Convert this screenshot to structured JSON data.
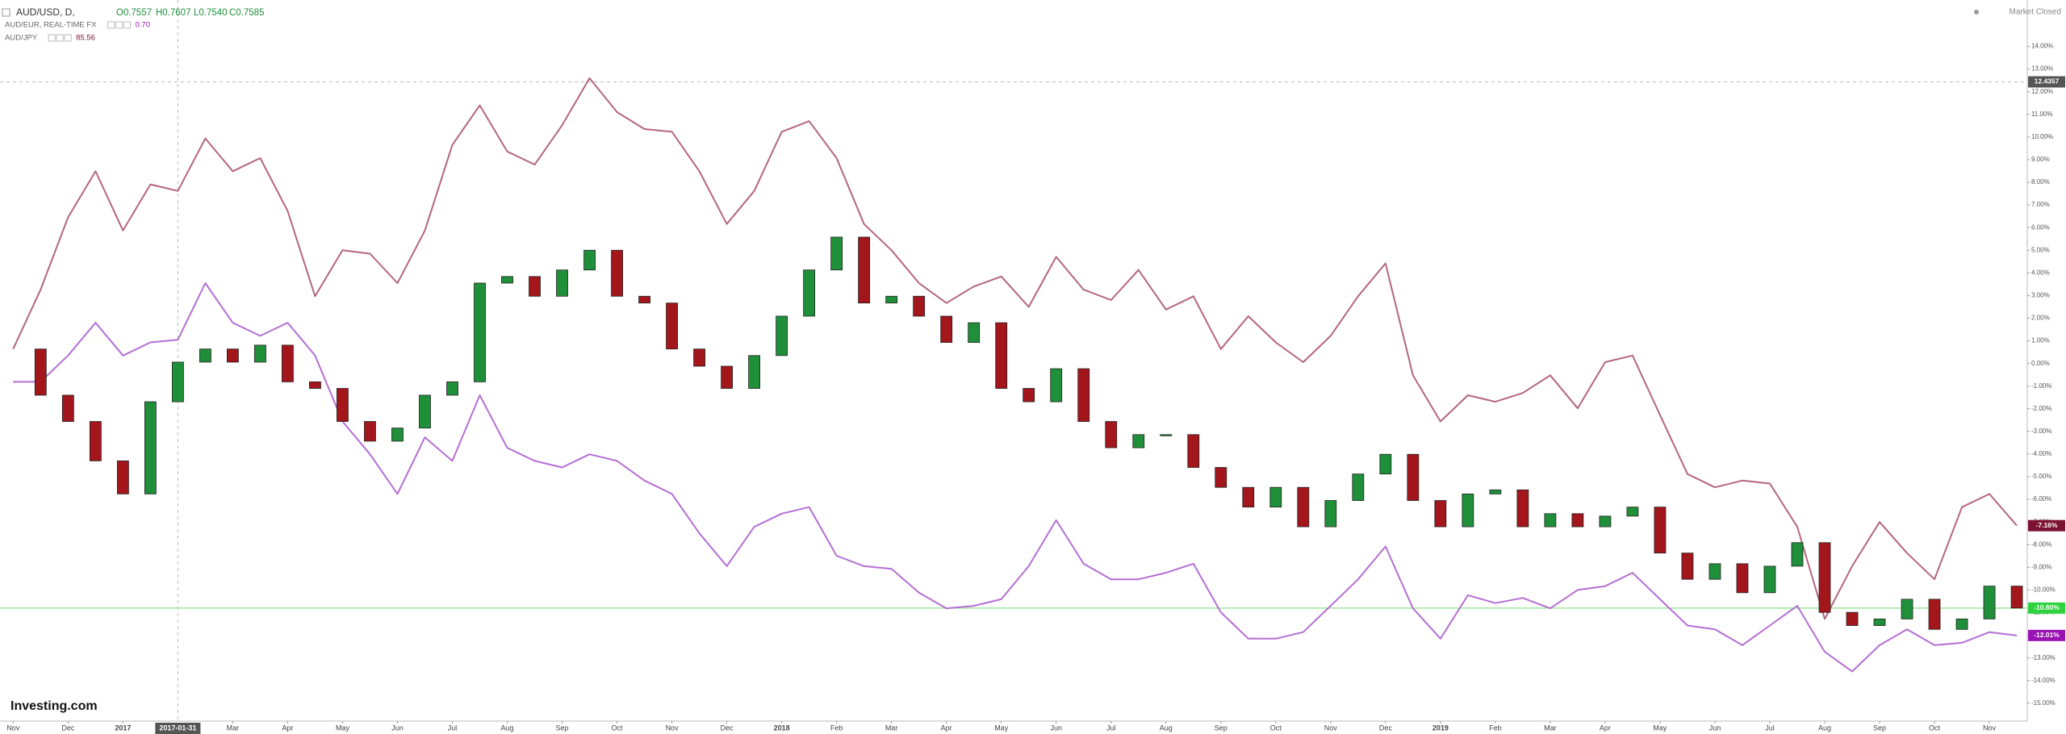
{
  "chart_data": {
    "type": "line",
    "status": "Market Closed",
    "logo": "Investing.com",
    "x": [
      0,
      0.5,
      1,
      1.5,
      2,
      2.5,
      3,
      3.5,
      4,
      4.5,
      5,
      5.5,
      6,
      6.5,
      7,
      7.5,
      8,
      8.5,
      9,
      9.5,
      10,
      10.5,
      11,
      11.5,
      12,
      12.5,
      13,
      13.5,
      14,
      14.5,
      15,
      15.5,
      16,
      16.5,
      17,
      17.5,
      18,
      18.5,
      19,
      19.5,
      20,
      20.5,
      21,
      21.5,
      22,
      22.5,
      23,
      23.5,
      24,
      24.5,
      25,
      25.5,
      26,
      26.5,
      27,
      27.5,
      28,
      28.5,
      29,
      29.5,
      30,
      30.5,
      31,
      31.5,
      32,
      32.5,
      33,
      33.5,
      34,
      34.5,
      35,
      35.5,
      36,
      36.5
    ],
    "xlim": [
      -0.24,
      36.69
    ],
    "xticks": [
      {
        "value": 0,
        "label": "Nov"
      },
      {
        "value": 1,
        "label": "Dec"
      },
      {
        "value": 2,
        "label": "2017"
      },
      {
        "value": 4,
        "label": "Mar"
      },
      {
        "value": 5,
        "label": "Apr"
      },
      {
        "value": 6,
        "label": "May"
      },
      {
        "value": 7,
        "label": "Jun"
      },
      {
        "value": 8,
        "label": "Jul"
      },
      {
        "value": 9,
        "label": "Aug"
      },
      {
        "value": 10,
        "label": "Sep"
      },
      {
        "value": 11,
        "label": "Oct"
      },
      {
        "value": 12,
        "label": "Nov"
      },
      {
        "value": 13,
        "label": "Dec"
      },
      {
        "value": 14,
        "label": "2018"
      },
      {
        "value": 15,
        "label": "Feb"
      },
      {
        "value": 16,
        "label": "Mar"
      },
      {
        "value": 17,
        "label": "Apr"
      },
      {
        "value": 18,
        "label": "May"
      },
      {
        "value": 19,
        "label": "Jun"
      },
      {
        "value": 20,
        "label": "Jul"
      },
      {
        "value": 21,
        "label": "Aug"
      },
      {
        "value": 22,
        "label": "Sep"
      },
      {
        "value": 23,
        "label": "Oct"
      },
      {
        "value": 24,
        "label": "Nov"
      },
      {
        "value": 25,
        "label": "Dec"
      },
      {
        "value": 26,
        "label": "2019"
      },
      {
        "value": 27,
        "label": "Feb"
      },
      {
        "value": 28,
        "label": "Mar"
      },
      {
        "value": 29,
        "label": "Apr"
      },
      {
        "value": 30,
        "label": "May"
      },
      {
        "value": 31,
        "label": "Jun"
      },
      {
        "value": 32,
        "label": "Jul"
      },
      {
        "value": 33,
        "label": "Aug"
      },
      {
        "value": 34,
        "label": "Sep"
      },
      {
        "value": 35,
        "label": "Oct"
      },
      {
        "value": 36,
        "label": "Nov"
      }
    ],
    "ylim": [
      -15.79,
      16.05
    ],
    "yticks": [
      {
        "value": 14,
        "label": "14.00%"
      },
      {
        "value": 13,
        "label": "13.00%"
      },
      {
        "value": 12,
        "label": "12.00%"
      },
      {
        "value": 11,
        "label": "11.00%"
      },
      {
        "value": 10,
        "label": "10.00%"
      },
      {
        "value": 9,
        "label": "9.00%"
      },
      {
        "value": 8,
        "label": "8.00%"
      },
      {
        "value": 7,
        "label": "7.00%"
      },
      {
        "value": 6,
        "label": "6.00%"
      },
      {
        "value": 5,
        "label": "5.00%"
      },
      {
        "value": 4,
        "label": "4.00%"
      },
      {
        "value": 3,
        "label": "3.00%"
      },
      {
        "value": 2,
        "label": "2.00%"
      },
      {
        "value": 1,
        "label": "1.00%"
      },
      {
        "value": 0,
        "label": "0.00%"
      },
      {
        "value": -1,
        "label": "-1.00%"
      },
      {
        "value": -2,
        "label": "-2.00%"
      },
      {
        "value": -3,
        "label": "-3.00%"
      },
      {
        "value": -4,
        "label": "-4.00%"
      },
      {
        "value": -5,
        "label": "-5.00%"
      },
      {
        "value": -6,
        "label": "-6.00%"
      },
      {
        "value": -7,
        "label": "-7.00%"
      },
      {
        "value": -8,
        "label": "-8.00%"
      },
      {
        "value": -9,
        "label": "-9.00%"
      },
      {
        "value": -10,
        "label": "-10.00%"
      },
      {
        "value": -11,
        "label": "-11.00%"
      },
      {
        "value": -12,
        "label": "-12.00%"
      },
      {
        "value": -13,
        "label": "-13.00%"
      },
      {
        "value": -14,
        "label": "-14.00%"
      },
      {
        "value": -15,
        "label": "-15.00%"
      }
    ],
    "crosshair": {
      "x": {
        "value": 3,
        "label": "2017-01-31"
      },
      "y": 12.4357
    },
    "series": [
      {
        "name": "AUD/USD, D,",
        "type": "candlestick",
        "up_color": "#1f8f3a",
        "down_color": "#a3161c",
        "label_color": "#2ed23f",
        "price_line": true,
        "price_line_color": "#9be89b",
        "quotes": [
          "O0.7557",
          "H0.7607",
          "L0.7540",
          "C0.7585"
        ],
        "last_label": "-10.80%",
        "values": [
          0.64,
          -1.4,
          -2.56,
          -4.3,
          -5.76,
          -1.69,
          0.06,
          0.64,
          0.06,
          0.81,
          -0.81,
          -1.1,
          -2.56,
          -3.43,
          -2.85,
          -1.4,
          -0.81,
          3.55,
          3.84,
          2.97,
          4.13,
          5.0,
          2.97,
          2.67,
          0.64,
          -0.12,
          -1.1,
          0.35,
          2.09,
          4.13,
          5.58,
          2.67,
          2.97,
          2.09,
          0.93,
          1.8,
          -1.1,
          -1.69,
          -0.23,
          -2.56,
          -3.72,
          -3.14,
          -3.14,
          -4.59,
          -5.47,
          -6.34,
          -5.47,
          -7.21,
          -6.05,
          -4.88,
          -4.01,
          -6.05,
          -7.21,
          -5.76,
          -5.58,
          -7.21,
          -6.63,
          -7.21,
          -6.74,
          -6.34,
          -8.37,
          -9.53,
          -8.84,
          -10.12,
          -8.95,
          -7.91,
          -10.99,
          -11.57,
          -11.28,
          -10.41,
          -11.74,
          -11.28,
          -9.83,
          -10.8
        ]
      },
      {
        "name": "AUD/EUR, REAL-TIME FX",
        "color": "#b46fd4",
        "label_color": "#9a12b3",
        "quote": "0.70",
        "last_label": "-12.01%",
        "values": [
          -0.81,
          -0.81,
          0.35,
          1.8,
          0.35,
          0.93,
          1.05,
          3.55,
          1.8,
          1.22,
          1.8,
          0.35,
          -2.56,
          -4.01,
          -5.76,
          -3.26,
          -4.3,
          -1.4,
          -3.72,
          -4.3,
          -4.59,
          -4.01,
          -4.3,
          -5.17,
          -5.76,
          -7.5,
          -8.95,
          -7.21,
          -6.63,
          -6.34,
          -8.49,
          -8.95,
          -9.07,
          -10.12,
          -10.81,
          -10.7,
          -10.41,
          -8.95,
          -6.92,
          -8.84,
          -9.53,
          -9.53,
          -9.24,
          -8.84,
          -10.99,
          -12.15,
          -12.15,
          -11.86,
          -10.7,
          -9.53,
          -8.08,
          -10.81,
          -12.15,
          -10.23,
          -10.58,
          -10.35,
          -10.81,
          -10.0,
          -9.83,
          -9.24,
          -10.41,
          -11.57,
          -11.74,
          -12.44,
          -11.57,
          -10.7,
          -12.73,
          -13.6,
          -12.44,
          -11.74,
          -12.44,
          -12.33,
          -11.86,
          -12.01
        ]
      },
      {
        "name": "AUD/JPY",
        "color": "#b4667d",
        "label_color": "#7c1233",
        "quote": "85.56",
        "last_label": "-7.16%",
        "values": [
          0.64,
          3.26,
          6.45,
          8.49,
          5.87,
          7.91,
          7.62,
          9.94,
          8.49,
          9.07,
          6.74,
          2.97,
          5.0,
          4.85,
          3.55,
          5.87,
          9.65,
          11.4,
          9.36,
          8.78,
          10.52,
          12.6,
          11.1,
          10.35,
          10.23,
          8.49,
          6.16,
          7.62,
          10.23,
          10.7,
          9.07,
          6.16,
          5.0,
          3.55,
          2.67,
          3.4,
          3.84,
          2.5,
          4.71,
          3.26,
          2.8,
          4.13,
          2.38,
          2.97,
          0.64,
          2.09,
          0.93,
          0.06,
          1.22,
          2.97,
          4.42,
          -0.52,
          -2.56,
          -1.4,
          -1.69,
          -1.3,
          -0.52,
          -1.98,
          0.06,
          0.35,
          -2.27,
          -4.88,
          -5.47,
          -5.17,
          -5.3,
          -7.21,
          -11.28,
          -8.95,
          -7.0,
          -8.37,
          -9.53,
          -6.34,
          -5.76,
          -7.16
        ]
      }
    ]
  }
}
